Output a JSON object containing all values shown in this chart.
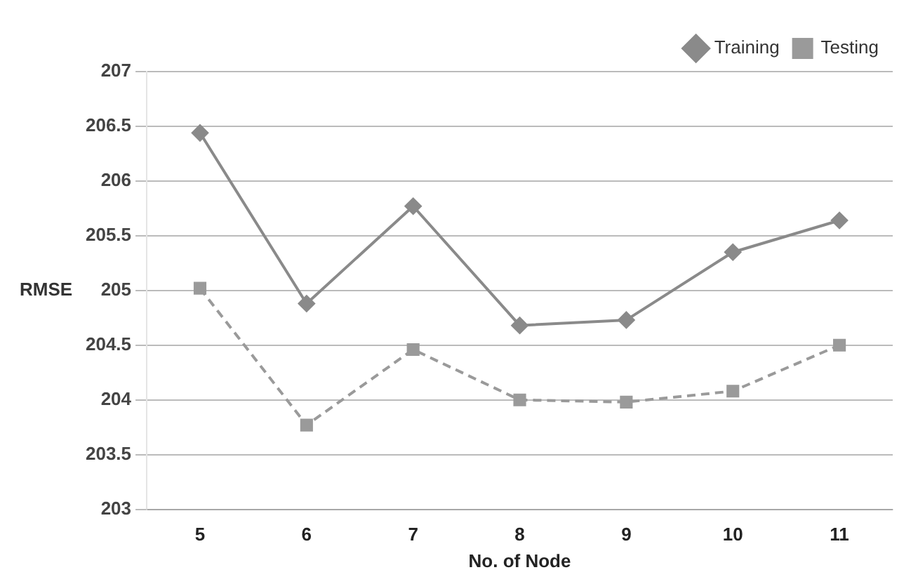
{
  "chart_data": {
    "type": "line",
    "xlabel": "No. of Node",
    "ylabel": "RMSE",
    "categories": [
      "5",
      "6",
      "7",
      "8",
      "9",
      "10",
      "11"
    ],
    "series": [
      {
        "name": "Training",
        "color": "#8a8a8a",
        "marker": "diamond",
        "line_style": "solid",
        "values": [
          206.44,
          204.88,
          205.77,
          204.68,
          204.73,
          205.35,
          205.64
        ]
      },
      {
        "name": "Testing",
        "color": "#9a9a9a",
        "marker": "square",
        "line_style": "dashed",
        "values": [
          205.02,
          203.77,
          204.46,
          204.0,
          203.98,
          204.08,
          204.5
        ]
      }
    ],
    "ylim": [
      203,
      207
    ],
    "yticks": [
      203,
      203.5,
      204,
      204.5,
      205,
      205.5,
      206,
      206.5,
      207
    ],
    "grid": "y",
    "legend": "top right"
  }
}
